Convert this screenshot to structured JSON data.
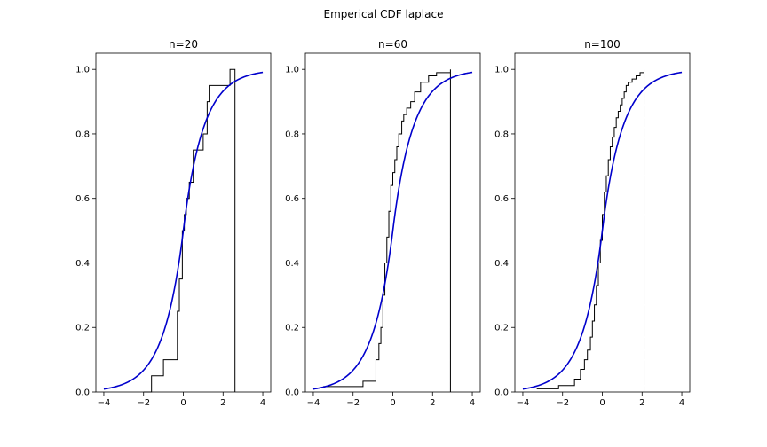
{
  "figure": {
    "suptitle": "Emperical CDF laplace"
  },
  "chart_data": [
    {
      "type": "line",
      "title": "n=20",
      "xlabel": "",
      "ylabel": "",
      "xlim": [
        -4.4,
        4.4
      ],
      "ylim": [
        0,
        1.05
      ],
      "xticks": [
        -4,
        -2,
        0,
        2,
        4
      ],
      "yticks": [
        0.0,
        0.2,
        0.4,
        0.6,
        0.8,
        1.0
      ],
      "x_tick_labels": [
        "−4",
        "−2",
        "0",
        "2",
        "4"
      ],
      "y_tick_labels": [
        "0.0",
        "0.2",
        "0.4",
        "0.6",
        "0.8",
        "1.0"
      ],
      "grid": false,
      "series": [
        {
          "style": "step",
          "color": "#000000",
          "x": [
            -2.0,
            -1.6,
            -1.0,
            -0.3,
            -0.2,
            -0.05,
            0.05,
            0.15,
            0.3,
            0.5,
            1.0,
            1.2,
            1.3,
            2.35,
            2.6,
            2.6
          ],
          "y": [
            0.0,
            0.05,
            0.1,
            0.25,
            0.35,
            0.5,
            0.55,
            0.6,
            0.65,
            0.75,
            0.8,
            0.9,
            0.95,
            1.0,
            1.0,
            0.0
          ]
        },
        {
          "style": "line",
          "color": "#0000cc",
          "function": "laplace_cdf",
          "xrange": [
            -4,
            4
          ]
        }
      ]
    },
    {
      "type": "line",
      "title": "n=60",
      "xlabel": "",
      "ylabel": "",
      "xlim": [
        -4.4,
        4.4
      ],
      "ylim": [
        0,
        1.05
      ],
      "xticks": [
        -4,
        -2,
        0,
        2,
        4
      ],
      "yticks": [
        0.0,
        0.2,
        0.4,
        0.6,
        0.8,
        1.0
      ],
      "x_tick_labels": [
        "−4",
        "−2",
        "0",
        "2",
        "4"
      ],
      "y_tick_labels": [
        "0.0",
        "0.2",
        "0.4",
        "0.6",
        "0.8",
        "1.0"
      ],
      "grid": false,
      "series": [
        {
          "style": "step",
          "color": "#000000",
          "x": [
            -3.5,
            -1.5,
            -0.85,
            -0.7,
            -0.6,
            -0.5,
            -0.4,
            -0.3,
            -0.2,
            -0.1,
            0.0,
            0.1,
            0.2,
            0.3,
            0.45,
            0.55,
            0.7,
            0.9,
            1.1,
            1.4,
            1.8,
            2.2,
            2.9,
            2.9
          ],
          "y": [
            0.0167,
            0.0333,
            0.1,
            0.15,
            0.2,
            0.3,
            0.4,
            0.48,
            0.56,
            0.64,
            0.68,
            0.72,
            0.76,
            0.8,
            0.84,
            0.86,
            0.88,
            0.9,
            0.93,
            0.96,
            0.98,
            0.99,
            1.0,
            0.0
          ]
        },
        {
          "style": "line",
          "color": "#0000cc",
          "function": "laplace_cdf",
          "xrange": [
            -4,
            4
          ]
        }
      ]
    },
    {
      "type": "line",
      "title": "n=100",
      "xlabel": "",
      "ylabel": "",
      "xlim": [
        -4.4,
        4.4
      ],
      "ylim": [
        0,
        1.05
      ],
      "xticks": [
        -4,
        -2,
        0,
        2,
        4
      ],
      "yticks": [
        0.0,
        0.2,
        0.4,
        0.6,
        0.8,
        1.0
      ],
      "x_tick_labels": [
        "−4",
        "−2",
        "0",
        "2",
        "4"
      ],
      "y_tick_labels": [
        "0.0",
        "0.2",
        "0.4",
        "0.6",
        "0.8",
        "1.0"
      ],
      "grid": false,
      "series": [
        {
          "style": "step",
          "color": "#000000",
          "x": [
            -3.3,
            -2.2,
            -1.4,
            -1.1,
            -0.9,
            -0.75,
            -0.6,
            -0.5,
            -0.4,
            -0.3,
            -0.2,
            -0.1,
            0.0,
            0.1,
            0.2,
            0.3,
            0.4,
            0.5,
            0.6,
            0.7,
            0.8,
            0.9,
            1.0,
            1.1,
            1.2,
            1.3,
            1.5,
            1.7,
            1.9,
            2.1,
            2.1
          ],
          "y": [
            0.01,
            0.02,
            0.04,
            0.07,
            0.1,
            0.13,
            0.17,
            0.22,
            0.27,
            0.33,
            0.4,
            0.47,
            0.55,
            0.62,
            0.67,
            0.72,
            0.76,
            0.79,
            0.82,
            0.85,
            0.87,
            0.89,
            0.91,
            0.93,
            0.95,
            0.96,
            0.97,
            0.98,
            0.99,
            1.0,
            0.0
          ]
        },
        {
          "style": "line",
          "color": "#0000cc",
          "function": "laplace_cdf",
          "xrange": [
            -4,
            4
          ]
        }
      ]
    }
  ]
}
